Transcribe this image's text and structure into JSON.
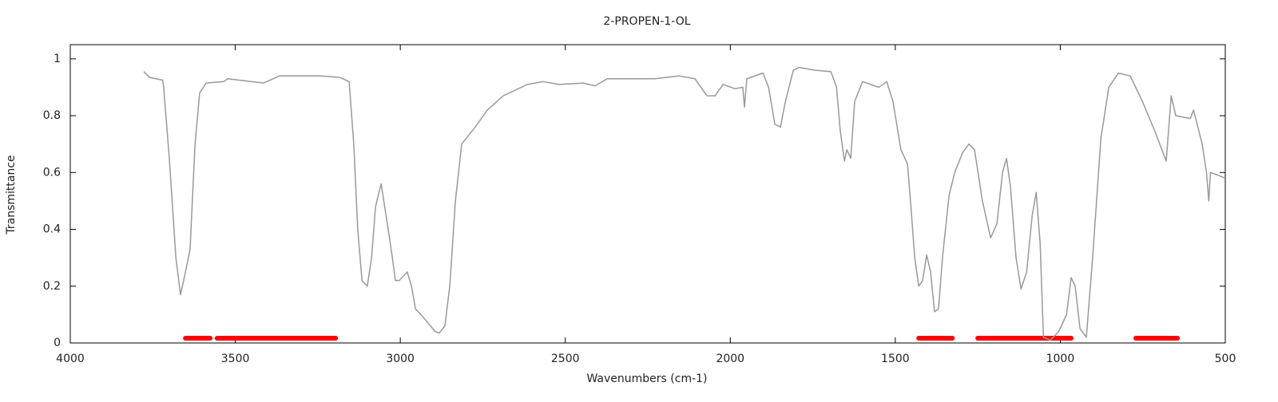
{
  "chart_data": {
    "type": "line",
    "title": "2-PROPEN-1-OL",
    "xlabel": "Wavenumbers (cm-1)",
    "ylabel": "Transmittance",
    "xlim": [
      4000,
      500
    ],
    "ylim": [
      0,
      1.05
    ],
    "xticks": [
      4000,
      3500,
      3000,
      2500,
      2000,
      1500,
      1000,
      500
    ],
    "yticks": [
      0,
      0.2,
      0.4,
      0.6,
      0.8,
      1
    ],
    "series": [
      {
        "color": "#999999",
        "x": [
          3777,
          3760,
          3720,
          3717,
          3700,
          3680,
          3666,
          3651,
          3637,
          3622,
          3608,
          3588,
          3535,
          3523,
          3414,
          3366,
          3245,
          3184,
          3155,
          3141,
          3129,
          3116,
          3100,
          3087,
          3075,
          3058,
          3046,
          3034,
          3024,
          3015,
          3003,
          2979,
          2966,
          2954,
          2930,
          2894,
          2882,
          2865,
          2850,
          2833,
          2814,
          2773,
          2736,
          2688,
          2615,
          2567,
          2519,
          2446,
          2410,
          2373,
          2228,
          2155,
          2107,
          2071,
          2046,
          2022,
          1986,
          1962,
          1957,
          1950,
          1901,
          1884,
          1865,
          1848,
          1833,
          1809,
          1792,
          1744,
          1695,
          1678,
          1667,
          1654,
          1647,
          1635,
          1623,
          1599,
          1574,
          1550,
          1526,
          1507,
          1483,
          1463,
          1454,
          1441,
          1429,
          1417,
          1405,
          1393,
          1381,
          1369,
          1357,
          1337,
          1320,
          1296,
          1277,
          1260,
          1236,
          1211,
          1192,
          1175,
          1163,
          1151,
          1134,
          1119,
          1102,
          1085,
          1073,
          1061,
          1051,
          1030,
          1005,
          981,
          967,
          955,
          940,
          921,
          902,
          877,
          853,
          824,
          788,
          751,
          715,
          679,
          664,
          650,
          606,
          596,
          570,
          557,
          550,
          545,
          521,
          500
        ],
        "values": [
          0.955,
          0.935,
          0.925,
          0.9,
          0.65,
          0.3,
          0.17,
          0.25,
          0.33,
          0.7,
          0.88,
          0.915,
          0.92,
          0.93,
          0.915,
          0.94,
          0.94,
          0.935,
          0.92,
          0.7,
          0.4,
          0.22,
          0.2,
          0.3,
          0.48,
          0.56,
          0.47,
          0.38,
          0.3,
          0.22,
          0.22,
          0.25,
          0.2,
          0.12,
          0.09,
          0.04,
          0.035,
          0.06,
          0.2,
          0.5,
          0.7,
          0.76,
          0.82,
          0.87,
          0.91,
          0.92,
          0.91,
          0.915,
          0.905,
          0.93,
          0.93,
          0.94,
          0.93,
          0.87,
          0.87,
          0.91,
          0.895,
          0.9,
          0.83,
          0.93,
          0.95,
          0.9,
          0.77,
          0.76,
          0.85,
          0.96,
          0.97,
          0.96,
          0.955,
          0.9,
          0.75,
          0.64,
          0.68,
          0.65,
          0.85,
          0.92,
          0.91,
          0.9,
          0.92,
          0.85,
          0.68,
          0.63,
          0.5,
          0.3,
          0.2,
          0.22,
          0.31,
          0.25,
          0.11,
          0.12,
          0.3,
          0.52,
          0.6,
          0.67,
          0.7,
          0.68,
          0.5,
          0.37,
          0.42,
          0.6,
          0.65,
          0.55,
          0.3,
          0.19,
          0.25,
          0.45,
          0.53,
          0.35,
          0.02,
          0.01,
          0.04,
          0.1,
          0.23,
          0.2,
          0.05,
          0.02,
          0.3,
          0.72,
          0.9,
          0.95,
          0.94,
          0.85,
          0.75,
          0.64,
          0.87,
          0.8,
          0.79,
          0.82,
          0.7,
          0.6,
          0.5,
          0.6,
          0.59,
          0.58
        ]
      }
    ],
    "highlight_ranges": [
      [
        3651,
        3576
      ],
      [
        3555,
        3196
      ],
      [
        1429,
        1327
      ],
      [
        1250,
        967
      ],
      [
        771,
        645
      ]
    ],
    "highlight_color": "#ff0000"
  }
}
